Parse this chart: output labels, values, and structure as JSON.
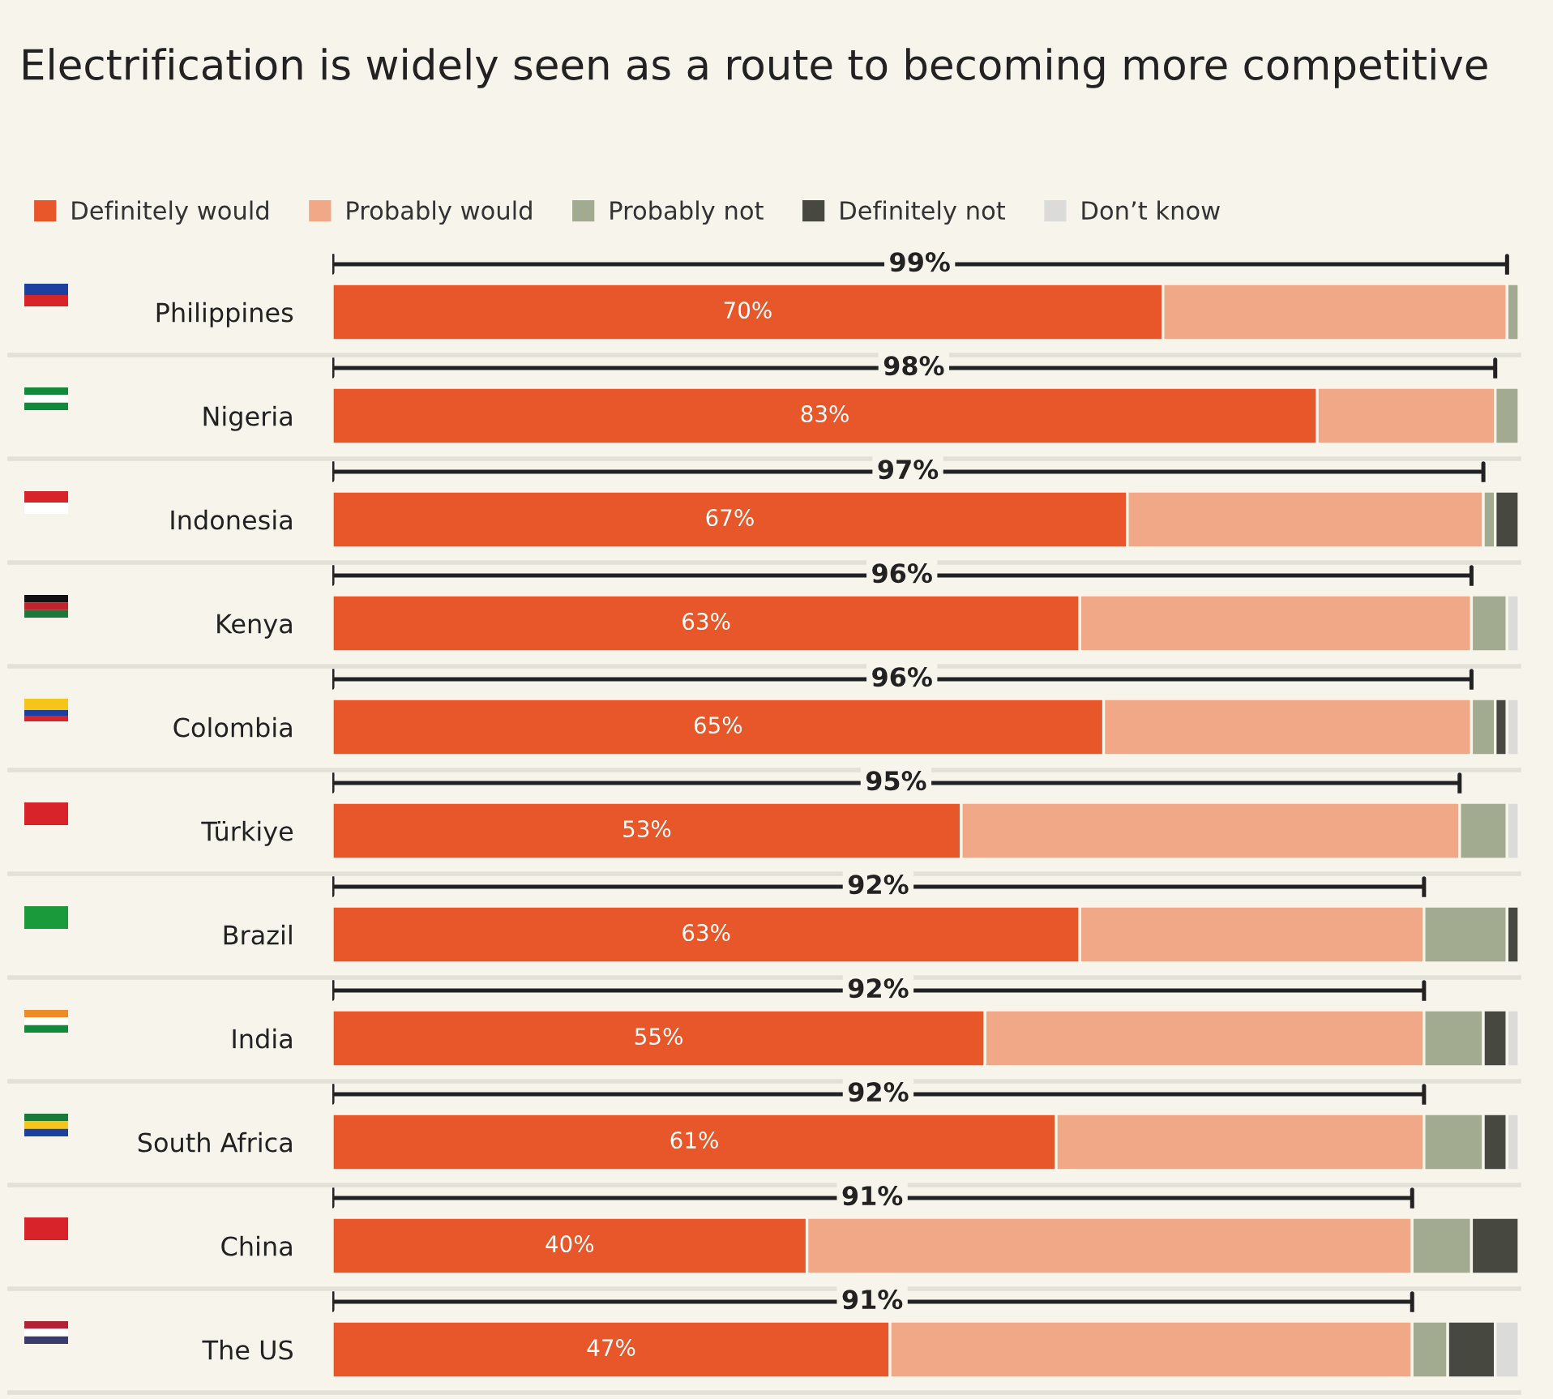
{
  "chart_data": {
    "type": "bar",
    "orientation": "horizontal",
    "stacked": true,
    "title": "Electrification is widely seen as a route to becoming more competitive",
    "categories": [
      "Philippines",
      "Nigeria",
      "Indonesia",
      "Kenya",
      "Colombia",
      "Türkiye",
      "Brazil",
      "India",
      "South Africa",
      "China",
      "The US"
    ],
    "series": [
      {
        "name": "Definitely would",
        "color": "#e8572a",
        "values": [
          70,
          83,
          67,
          63,
          65,
          53,
          63,
          55,
          61,
          40,
          47
        ],
        "value_labels": [
          "70%",
          "83%",
          "67%",
          "63%",
          "65%",
          "53%",
          "63%",
          "55%",
          "61%",
          "40%",
          "47%"
        ]
      },
      {
        "name": "Probably would",
        "color": "#f0a886",
        "values": [
          29,
          15,
          30,
          33,
          31,
          42,
          29,
          37,
          31,
          51,
          44
        ]
      },
      {
        "name": "Probably not",
        "color": "#a2ab90",
        "values": [
          1,
          2,
          1,
          3,
          2,
          4,
          7,
          5,
          5,
          5,
          3
        ]
      },
      {
        "name": "Definitely not",
        "color": "#474840",
        "values": [
          null,
          null,
          2,
          null,
          1,
          null,
          1,
          2,
          2,
          4,
          4
        ]
      },
      {
        "name": "Don’t know",
        "color": "#dbdbd9",
        "values": [
          null,
          null,
          null,
          1,
          1,
          1,
          null,
          1,
          1,
          null,
          2
        ]
      }
    ],
    "annotations": [
      "99%",
      "98%",
      "97%",
      "96%",
      "96%",
      "95%",
      "92%",
      "92%",
      "92%",
      "91%",
      "91%"
    ],
    "xlim": [
      0,
      100
    ],
    "tick_labels": "y",
    "grid": false,
    "legend": "top left"
  }
}
